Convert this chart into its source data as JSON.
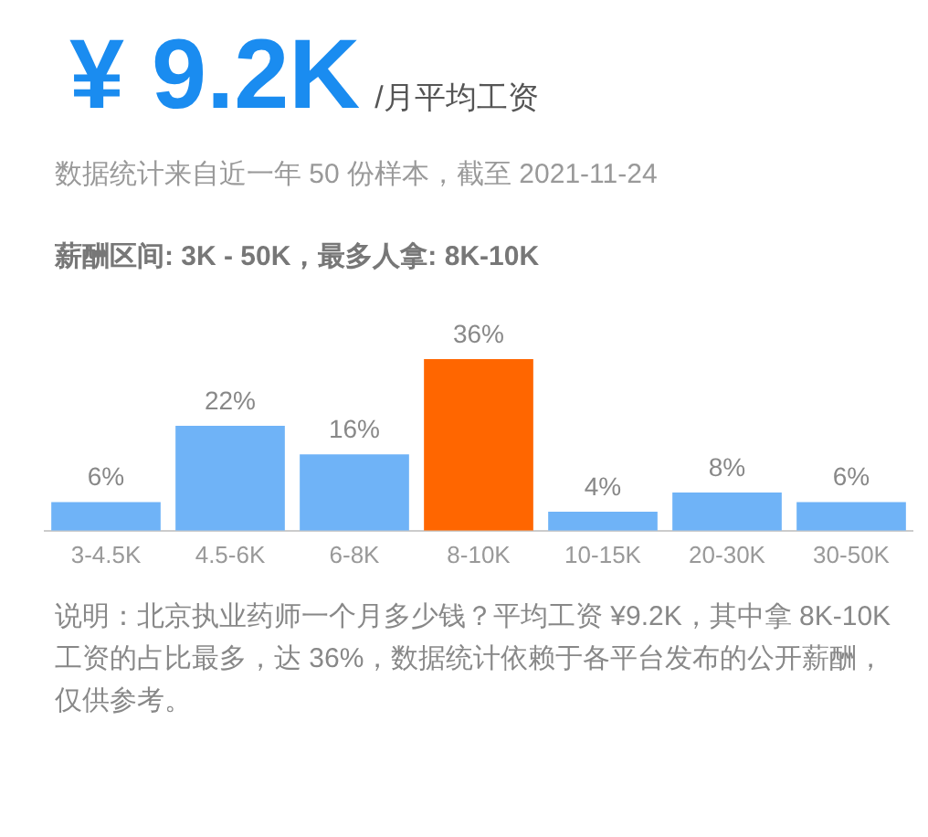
{
  "chart_data": {
    "type": "bar",
    "title": "¥ 9.2K",
    "subtitle": "/月平均工资",
    "annotations": [
      "数据统计来自近一年 50 份样本，截至 2021-11-24",
      "薪酬区间: 3K - 50K，最多人拿: 8K-10K",
      "说明：北京执业药师一个月多少钱？平均工资 ¥9.2K，其中拿 8K-10K 工资的占比最多，达 36%，数据统计依赖于各平台发布的公开薪酬，仅供参考。"
    ],
    "categories": [
      "3-4.5K",
      "4.5-6K",
      "6-8K",
      "8-10K",
      "10-15K",
      "20-30K",
      "30-50K"
    ],
    "values": [
      6,
      22,
      16,
      36,
      4,
      8,
      6
    ],
    "colors": [
      "#6fb3f7",
      "#6fb3f7",
      "#6fb3f7",
      "#ff6600",
      "#6fb3f7",
      "#6fb3f7",
      "#6fb3f7"
    ],
    "value_labels": [
      "6%",
      "22%",
      "16%",
      "36%",
      "4%",
      "8%",
      "6%"
    ]
  }
}
